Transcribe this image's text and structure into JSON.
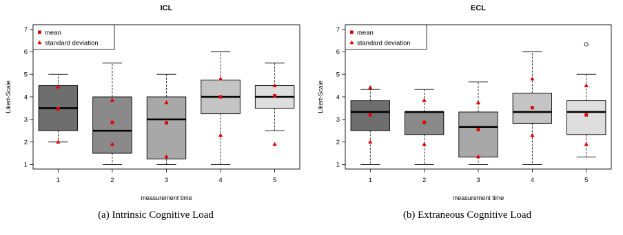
{
  "captions": [
    "(a)  Intrinsic Cognitive Load",
    "(b)  Extraneous Cognitive Load"
  ],
  "chart_data": [
    {
      "type": "box",
      "title": "ICL",
      "xlabel": "measurement time",
      "ylabel": "Likert-Scale",
      "categories": [
        "1",
        "2",
        "3",
        "4",
        "5"
      ],
      "ylim": [
        0.8,
        7.2
      ],
      "yticks": [
        "1",
        "2",
        "3",
        "4",
        "5",
        "6",
        "7"
      ],
      "legend": {
        "position": "top-left",
        "items": [
          "mean",
          "standard deviation"
        ]
      },
      "fill_colors": [
        "#6e6e6e",
        "#8a8a8a",
        "#a8a8a8",
        "#c4c4c4",
        "#dedede"
      ],
      "boxes": [
        {
          "category": "1",
          "min": 2,
          "q1": 2.5,
          "median": 3.5,
          "q3": 4.5,
          "max": 5,
          "mean": 3.47,
          "sd_low": 2.0,
          "sd_high": 4.45,
          "outliers": []
        },
        {
          "category": "2",
          "min": 1,
          "q1": 1.5,
          "median": 2.5,
          "q3": 4.0,
          "max": 5.5,
          "mean": 2.87,
          "sd_low": 1.9,
          "sd_high": 3.85,
          "outliers": []
        },
        {
          "category": "3",
          "min": 1,
          "q1": 1.25,
          "median": 3.0,
          "q3": 4.0,
          "max": 5,
          "mean": 2.85,
          "sd_low": 1.35,
          "sd_high": 3.75,
          "outliers": []
        },
        {
          "category": "4",
          "min": 1,
          "q1": 3.25,
          "median": 4.0,
          "q3": 4.75,
          "max": 6,
          "mean": 4.0,
          "sd_low": 2.3,
          "sd_high": 4.8,
          "outliers": []
        },
        {
          "category": "5",
          "min": 2.5,
          "q1": 3.5,
          "median": 4.0,
          "q3": 4.5,
          "max": 5.5,
          "mean": 4.05,
          "sd_low": 1.9,
          "sd_high": 4.5,
          "outliers": []
        }
      ]
    },
    {
      "type": "box",
      "title": "ECL",
      "xlabel": "measurement time",
      "ylabel": "Likert-Scale",
      "categories": [
        "1",
        "2",
        "3",
        "4",
        "5"
      ],
      "ylim": [
        0.8,
        7.2
      ],
      "yticks": [
        "1",
        "2",
        "3",
        "4",
        "5",
        "6",
        "7"
      ],
      "legend": {
        "position": "top-left",
        "items": [
          "mean",
          "standard deviation"
        ]
      },
      "fill_colors": [
        "#6e6e6e",
        "#8a8a8a",
        "#a8a8a8",
        "#c4c4c4",
        "#dedede"
      ],
      "boxes": [
        {
          "category": "1",
          "min": 1,
          "q1": 2.5,
          "median": 3.33,
          "q3": 3.83,
          "max": 4.33,
          "mean": 3.2,
          "sd_low": 2.0,
          "sd_high": 4.42,
          "outliers": []
        },
        {
          "category": "2",
          "min": 1,
          "q1": 2.33,
          "median": 3.33,
          "q3": 3.33,
          "max": 4.33,
          "mean": 2.87,
          "sd_low": 1.9,
          "sd_high": 3.85,
          "outliers": []
        },
        {
          "category": "3",
          "min": 1,
          "q1": 1.33,
          "median": 2.67,
          "q3": 3.33,
          "max": 4.67,
          "mean": 2.55,
          "sd_low": 1.35,
          "sd_high": 3.75,
          "outliers": []
        },
        {
          "category": "4",
          "min": 1,
          "q1": 2.83,
          "median": 3.33,
          "q3": 4.17,
          "max": 6,
          "mean": 3.52,
          "sd_low": 2.3,
          "sd_high": 4.8,
          "outliers": []
        },
        {
          "category": "5",
          "min": 1.33,
          "q1": 2.33,
          "median": 3.33,
          "q3": 3.83,
          "max": 5,
          "mean": 3.2,
          "sd_low": 1.9,
          "sd_high": 4.5,
          "outliers": [
            6.33
          ]
        }
      ]
    }
  ]
}
